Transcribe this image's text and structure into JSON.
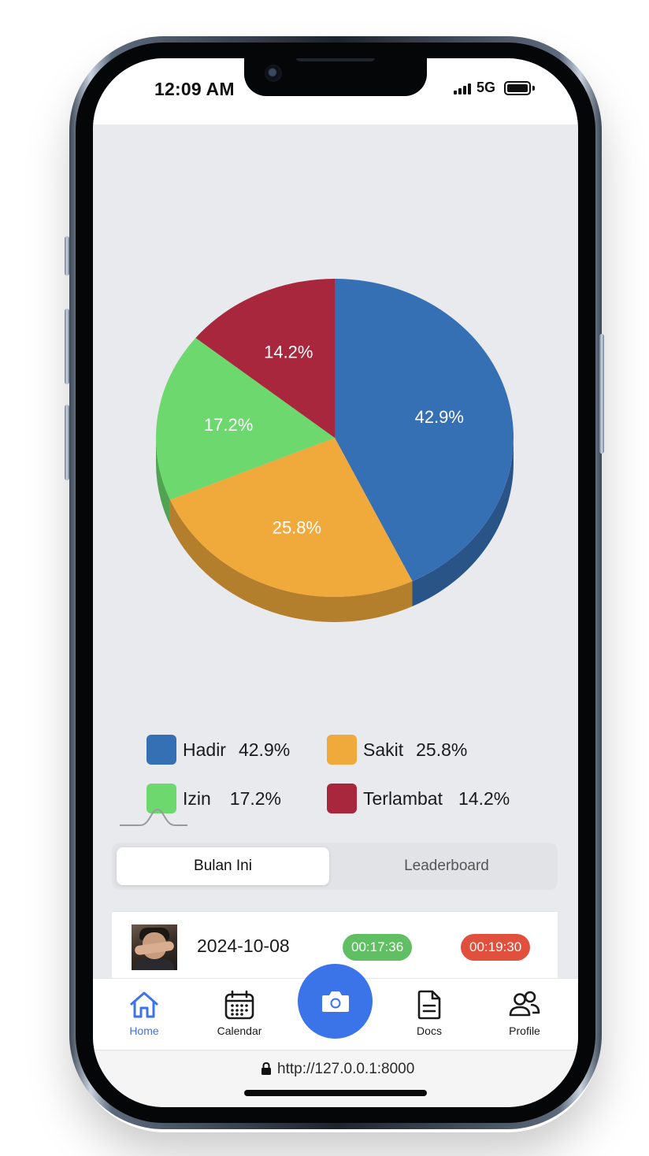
{
  "status_bar": {
    "time": "12:09 AM",
    "network": "5G"
  },
  "chart_data": {
    "type": "pie",
    "labels": [
      "Hadir",
      "Sakit",
      "Izin",
      "Terlambat"
    ],
    "values": [
      42.9,
      25.8,
      17.2,
      14.2
    ],
    "colors": [
      "#3570b4",
      "#f0a93b",
      "#6cd86e",
      "#a8273d"
    ],
    "data_labels": [
      "42.9%",
      "25.8%",
      "17.2%",
      "14.2%"
    ],
    "style": "3d"
  },
  "legend": {
    "items": [
      {
        "name": "Hadir",
        "value": "42.9%",
        "color": "#3570b4"
      },
      {
        "name": "Sakit",
        "value": "25.8%",
        "color": "#f0a93b"
      },
      {
        "name": "Izin",
        "value": "17.2%",
        "color": "#6cd86e"
      },
      {
        "name": "Terlambat",
        "value": "14.2%",
        "color": "#a8273d"
      }
    ]
  },
  "tabs": {
    "active": "Bulan Ini",
    "inactive": "Leaderboard"
  },
  "records": [
    {
      "date": "2024-10-08",
      "check_in": "00:17:36",
      "check_out": "00:19:30"
    }
  ],
  "nav": {
    "items": [
      {
        "label": "Home",
        "icon": "home-icon",
        "active": true
      },
      {
        "label": "Calendar",
        "icon": "calendar-icon",
        "active": false
      },
      {
        "label": "Docs",
        "icon": "document-icon",
        "active": false
      },
      {
        "label": "Profile",
        "icon": "users-icon",
        "active": false
      }
    ],
    "fab_icon": "camera-icon",
    "accent": "#3b73e8"
  },
  "url_bar": {
    "url": "http://127.0.0.1:8000"
  }
}
